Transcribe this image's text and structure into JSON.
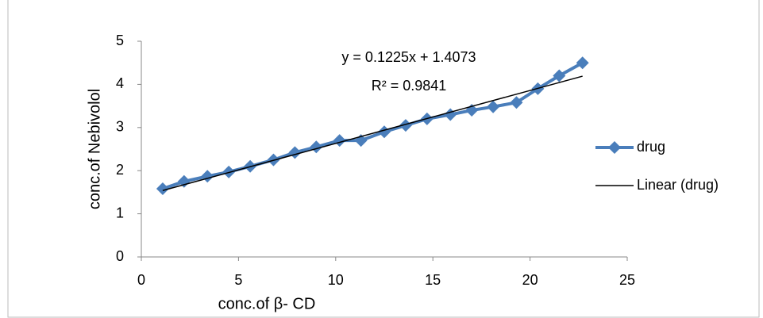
{
  "chart_data": {
    "type": "scatter",
    "x_label": "conc.of β- CD",
    "y_label": "conc.of Nebivolol",
    "annotations": [
      "y = 0.1225x + 1.4073",
      "R² = 0.9841"
    ],
    "series": [
      {
        "name": "drug",
        "color": "#4a7ebb",
        "marker": "diamond",
        "x": [
          1.1,
          2.2,
          3.4,
          4.5,
          5.6,
          6.8,
          7.9,
          9.0,
          10.2,
          11.3,
          12.5,
          13.6,
          14.7,
          15.9,
          17.0,
          18.1,
          19.3,
          20.4,
          21.5,
          22.7
        ],
        "values": [
          1.58,
          1.75,
          1.87,
          1.97,
          2.1,
          2.25,
          2.42,
          2.55,
          2.7,
          2.7,
          2.9,
          3.05,
          3.2,
          3.3,
          3.4,
          3.48,
          3.58,
          3.9,
          4.2,
          4.5
        ]
      },
      {
        "name": "Linear (drug)",
        "color": "#000000",
        "marker": "none",
        "x": [
          1.1,
          22.7
        ],
        "values": [
          1.54,
          4.19
        ]
      }
    ],
    "xlim": [
      0,
      25
    ],
    "xticks": [
      0,
      5,
      10,
      15,
      20,
      25
    ],
    "ylim": [
      0,
      5
    ],
    "yticks": [
      0,
      1,
      2,
      3,
      4,
      5
    ],
    "grid": false,
    "legend": "right"
  }
}
